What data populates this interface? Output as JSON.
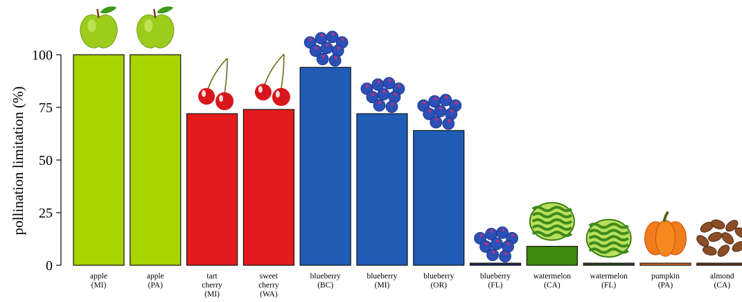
{
  "chart_data": {
    "type": "bar",
    "ylabel": "pollination limitation (%)",
    "ylim": [
      0,
      100
    ],
    "yticks": [
      0,
      25,
      50,
      75,
      100
    ],
    "grid": false,
    "categories": [
      [
        "apple",
        "(MI)"
      ],
      [
        "apple",
        "(PA)"
      ],
      [
        "tart",
        "cherry",
        "(MI)"
      ],
      [
        "sweet",
        "cherry",
        "(WA)"
      ],
      [
        "blueberry",
        "(BC)"
      ],
      [
        "blueberry",
        "(MI)"
      ],
      [
        "blueberry",
        "(OR)"
      ],
      [
        "blueberry",
        "(FL)"
      ],
      [
        "watermelon",
        "(CA)"
      ],
      [
        "watermelon",
        "(FL)"
      ],
      [
        "pumpkin",
        "(PA)"
      ],
      [
        "almond",
        "(CA)"
      ]
    ],
    "values": [
      100,
      100,
      72,
      74,
      94,
      72,
      64,
      1,
      9,
      1,
      1,
      1
    ],
    "crops": [
      "apple",
      "apple",
      "cherry",
      "cherry",
      "blueberry",
      "blueberry",
      "blueberry",
      "blueberry",
      "watermelon",
      "watermelon",
      "pumpkin",
      "almond"
    ],
    "colors": {
      "apple": "#a8d400",
      "cherry": "#e31b1e",
      "blueberry": "#205cb5",
      "blueberry_low": "#1a2e5e",
      "watermelon": "#3f8a10",
      "watermelon_low": "#2c4a1f",
      "pumpkin": "#e0701c",
      "almond": "#6b3b1e"
    }
  }
}
